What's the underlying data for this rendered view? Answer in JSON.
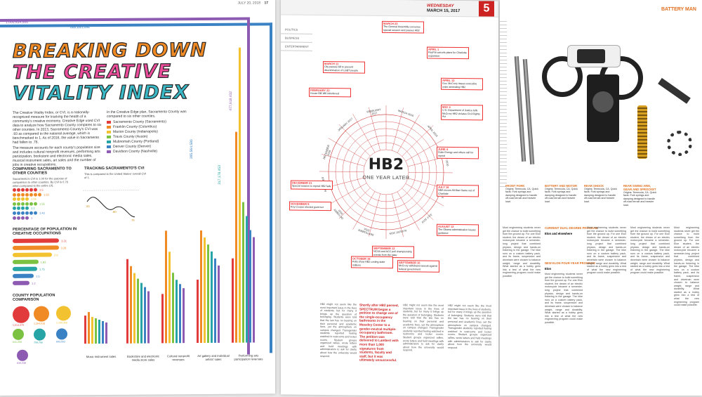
{
  "left_page": {
    "header_date": "JULY 20, 2018",
    "page_number": "17",
    "top_values": [
      "1,000,454,666",
      "866,693,094"
    ],
    "title_lines": [
      "BREAKING DOWN",
      "THE CREATIVE",
      "VITALITY INDEX"
    ],
    "intro": "The Creative Vitality Index, or CVI, is a nationally-recognized measure for tracking the health of a community's creative economy. Creative Edge used CVI data to analyze how Sacramento County compares to six other counties. In 2013, Sacramento County's CVI was .93 as compared to the national average, which is benchmarked to 1. As of 2016, the value in Sacramento had fallen to .76.",
    "intro2": "The measure accounts for each county's population size and includes cultural nonprofit revenues, performing arts participation, bookstore and electronic media sales, musical instrument sales, art sales and the number of jobs in creative occupations.",
    "counties_intro": "In the Creative Edge plan, Sacramento County was compared to six other counties.",
    "counties": [
      {
        "name": "Sacramento County (Sacramento)",
        "color": "#e23b3b"
      },
      {
        "name": "Franklin County (Columbus)",
        "color": "#f08a24"
      },
      {
        "name": "Marion County (Indianapolis)",
        "color": "#f2c230"
      },
      {
        "name": "Travis County (Austin)",
        "color": "#7cc242"
      },
      {
        "name": "Multnomah County (Portland)",
        "color": "#27a4a6"
      },
      {
        "name": "Denver County (Denver)",
        "color": "#3b82c4"
      },
      {
        "name": "Davidson County (Nashville)",
        "color": "#8e5bb3"
      }
    ],
    "comparing_title": "COMPARING SACRAMENTO TO OTHER COUNTIES",
    "comparing_text": "Sacramento's CVI is 1.00 for the purpose of comparison to other counties. By CVI is 0.76 when compared to the entire US.",
    "comparing_values": [
      "1.5",
      "1.63",
      "1.06",
      "1.55",
      "1.1",
      "1.43",
      "1"
    ],
    "tracking_title": "TRACKING SACRAMENTO'S CVI",
    "tracking_text": "This is compared to the United States' overall CVI of 1.",
    "tracking_values": [
      ".93",
      ".80",
      ".76"
    ],
    "pct_title": "PERCENTAGE OF POPULATION IN CREATIVE OCCUPATIONS",
    "pct_values": [
      "3.31",
      "3.28",
      "2.8",
      "1.83",
      "1.75",
      "1.5",
      "1.2"
    ],
    "pop_title": "COUNTY POPULATION COMPARISON",
    "pop_values": [
      "1,514,479",
      "1,264,518",
      "1,199,350",
      "641,250",
      "799,766",
      "693,552",
      "634,430"
    ],
    "categories": [
      "Music instrument sales",
      "Bookstore and electronic media store sales",
      "Cultural nonprofit revenues",
      "Art gallery and individual artists' sales",
      "Performing arts participation revenues"
    ],
    "category_totals": [
      "477,618,432",
      "395,564,580",
      "317,178,453"
    ]
  },
  "middle_page": {
    "header_day": "WEDNESDAY",
    "header_date": "MARCH 15, 2017",
    "section_number": "5",
    "section_tabs": [
      "POLITICS",
      "BUSINESS",
      "ENTERTAINMENT"
    ],
    "center_title": "HB2",
    "center_subtitle": "ONE YEAR LATER",
    "months": [
      "FEBRUARY 2017",
      "MARCH 2016",
      "APRIL 2016",
      "MAY 2016",
      "JUNE 2016",
      "JULY 2016",
      "AUGUST 2016",
      "SEPTEMBER 2016",
      "OCTOBER 2016",
      "NOVEMBER 2016",
      "DECEMBER 2016",
      "JANUARY 2017"
    ],
    "events": [
      {
        "date": "MARCH 11",
        "text": "City passes bill to prevent discrimination of LGBT people"
      },
      {
        "date": "MARCH 23",
        "text": "The General Assembly convenes special session and passes HB2"
      },
      {
        "date": "APRIL 1",
        "text": "PayPal cancels plans for Charlotte expansion"
      },
      {
        "date": "APRIL 12",
        "text": "Gov. McCrory issues executive order amending HB2"
      },
      {
        "date": "MAY 4",
        "text": "U.S. Department of Justice tells McCrory HB2 violates Civil Rights Act"
      },
      {
        "date": "JUNE 4",
        "text": "Duke Energy and others call for repeal"
      },
      {
        "date": "JULY 18",
        "text": "NBA moves All-Star Game out of Charlotte"
      },
      {
        "date": "AUGUST 12",
        "text": "The Obama administration issues guidance"
      },
      {
        "date": "SEPTEMBER 12",
        "text": "NCAA and ACC pull championship events from the state"
      },
      {
        "date": "SEPTEMBER 16",
        "text": "McCrory withdraws lawsuit against federal government"
      },
      {
        "date": "OCTOBER 18",
        "text": "Polls show HB2 costing state millions"
      },
      {
        "date": "NOVEMBER 8",
        "text": "Roy Cooper elected governor"
      },
      {
        "date": "DECEMBER 21",
        "text": "Special session to repeal HB2 fails"
      },
      {
        "date": "FEBRUARY 22",
        "text": "House Bill 186 introduced"
      }
    ],
    "pull_quote": "Shortly after HB2 passed, SPECTRUM began a petition to change one of the single-occupancy bathrooms in the Moseley Center to a gender-neutral multiple-occupancy bathroom. The petition was delivered to Lambert with more than 1,000 signatures from students, faculty and staff, but it was ultimately unsuccessful.",
    "body_text": "HB2 might not seem like the most important issue in the lives of students, but for many it brings up the question of belonging. Students were told that the law has no bearing on their personal and academic lives, yet the atmosphere on campus changed. Transgender students reported feeling watched in restrooms and locker rooms. Student groups organized rallies, wrote letters and held meetings with administrators to ask for clarity about how the university would respond."
  },
  "right_page": {
    "section_title": "BATTERY MAN",
    "parts": [
      {
        "name": "FRONT FORK",
        "color": "#e07020"
      },
      {
        "name": "BATTERY AND MOTOR",
        "color": "#e07020"
      },
      {
        "name": "REAR SHOCK",
        "color": "#e07020"
      },
      {
        "name": "REAR SWING ARM, GEAR AND SPROCKET",
        "color": "#e07020"
      }
    ],
    "part_text": "Origins: Temecula, CA. Quick facts: Fork springs and damping designed to handle off-road terrain and heavier load.",
    "subheads": [
      "CURRENT DUAL-DEGREE PROGRAM",
      "Elon and elsewhere",
      "NEW ELON FOUR-YEAR PROGRAM",
      "Elon"
    ],
    "body_text": "Most engineering students never get the chance to build something from the ground up. For one Elon student, the dream of an electric motorcycle became a semester-long project that combined physics, design and hands-on tinkering in the garage. The bike runs on a custom battery pack, and its frame, suspension and drivetrain were chosen to balance weight, range and durability. What started as a hobby grew into a test of what the new engineering program could make possible."
  }
}
